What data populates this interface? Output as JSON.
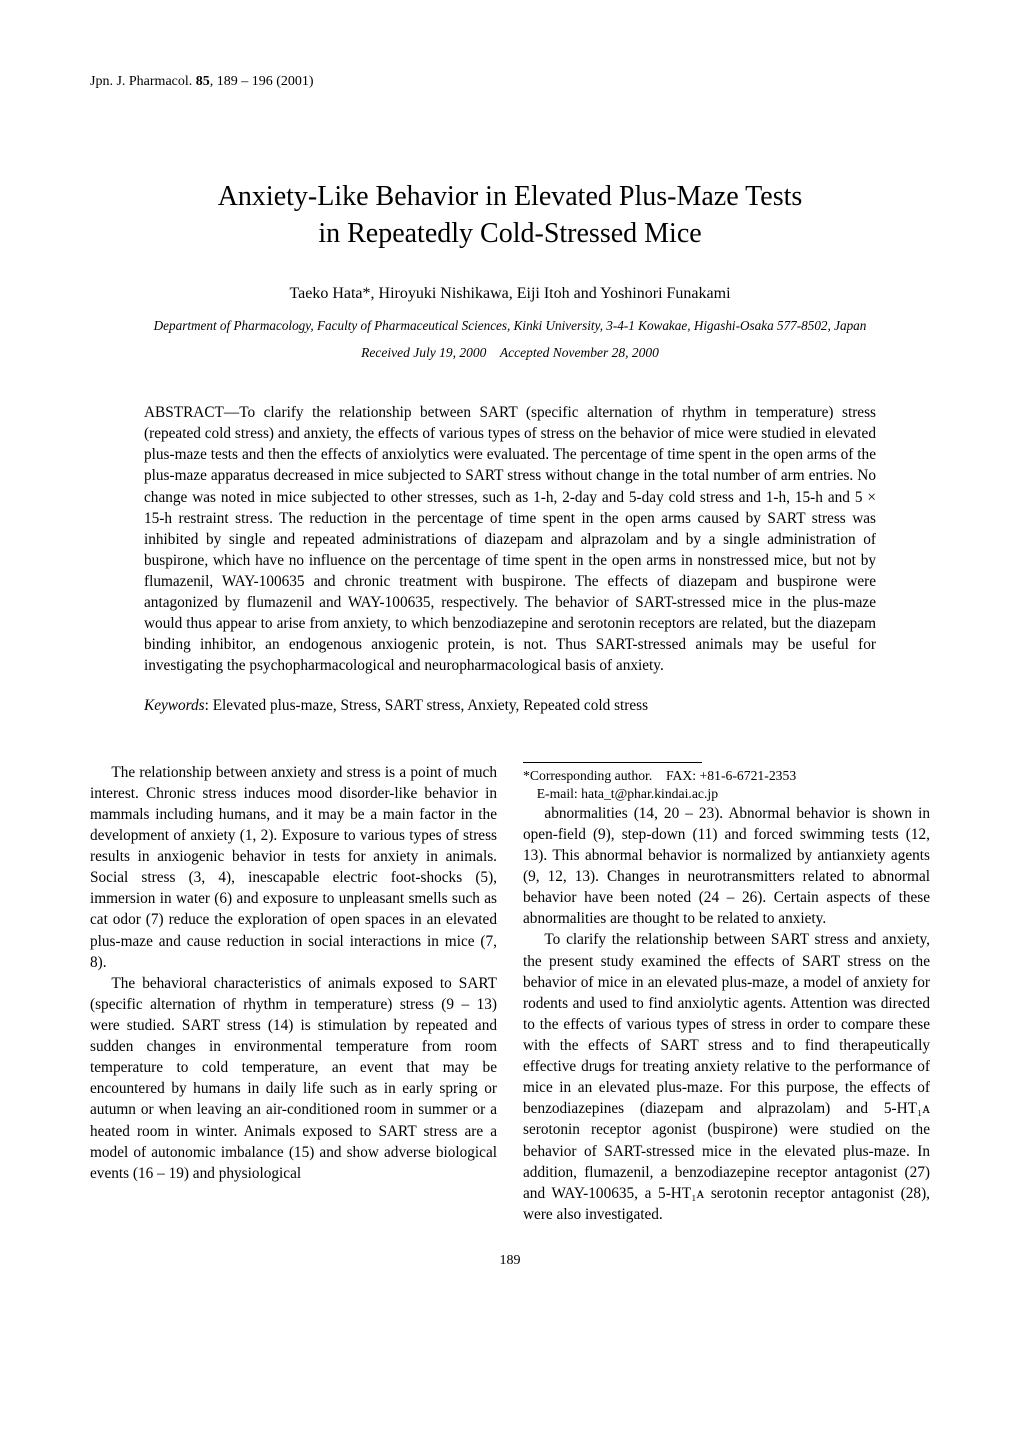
{
  "journal": {
    "name": "Jpn. J. Pharmacol.",
    "volume": "85",
    "pages": "189 – 196",
    "year": "(2001)"
  },
  "title_line1": "Anxiety-Like Behavior in Elevated Plus-Maze Tests",
  "title_line2": "in Repeatedly Cold-Stressed Mice",
  "authors": "Taeko Hata*, Hiroyuki Nishikawa, Eiji Itoh and Yoshinori Funakami",
  "affiliation": "Department of Pharmacology, Faculty of Pharmaceutical Sciences, Kinki University, 3-4-1 Kowakae, Higashi-Osaka 577-8502, Japan",
  "received": "Received July 19, 2000",
  "accepted": "Accepted November 28, 2000",
  "abstract_label": "ABSTRACT—",
  "abstract_body": "To clarify the relationship between SART (specific alternation of rhythm in temperature) stress (repeated cold stress) and anxiety, the effects of various types of stress on the behavior of mice were studied in elevated plus-maze tests and then the effects of anxiolytics were evaluated. The percentage of time spent in the open arms of the plus-maze apparatus decreased in mice subjected to SART stress without change in the total number of arm entries. No change was noted in mice subjected to other stresses, such as 1-h, 2-day and 5-day cold stress and 1-h, 15-h and 5 × 15-h restraint stress. The reduction in the percentage of time spent in the open arms caused by SART stress was inhibited by single and repeated administrations of diazepam and alprazolam and by a single administration of buspirone, which have no influence on the percentage of time spent in the open arms in nonstressed mice, but not by flumazenil, WAY-100635 and chronic treatment with buspirone. The effects of diazepam and buspirone were antagonized by flumazenil and WAY-100635, respectively. The behavior of SART-stressed mice in the plus-maze would thus appear to arise from anxiety, to which benzodiazepine and serotonin receptors are related, but the diazepam binding inhibitor, an endogenous anxiogenic protein, is not. Thus SART-stressed animals may be useful for investigating the psychopharmacological and neuropharmacological basis of anxiety.",
  "keywords_label": "Keywords",
  "keywords_body": ": Elevated plus-maze, Stress, SART stress, Anxiety, Repeated cold stress",
  "body": {
    "p1": "The relationship between anxiety and stress is a point of much interest. Chronic stress induces mood disorder-like behavior in mammals including humans, and it may be a main factor in the development of anxiety (1, 2). Exposure to various types of stress results in anxiogenic behavior in tests for anxiety in animals. Social stress (3, 4), inescapable electric foot-shocks (5), immersion in water (6) and exposure to unpleasant smells such as cat odor (7) reduce the exploration of open spaces in an elevated plus-maze and cause reduction in social interactions in mice (7, 8).",
    "p2": "The behavioral characteristics of animals exposed to SART (specific alternation of rhythm in temperature) stress (9 – 13) were studied. SART stress (14) is stimulation by repeated and sudden changes in environmental temperature from room temperature to cold temperature, an event that may be encountered by humans in daily life such as in early spring or autumn or when leaving an air-conditioned room in summer or a heated room in winter. Animals exposed to SART stress are a model of autonomic imbalance (15) and show adverse biological events (16 – 19) and physiological",
    "p3": "abnormalities (14, 20 – 23). Abnormal behavior is shown in open-field (9), step-down (11) and forced swimming tests (12, 13). This abnormal behavior is normalized by antianxiety agents (9, 12, 13). Changes in neurotransmitters related to abnormal behavior have been noted (24 – 26). Certain aspects of these abnormalities are thought to be related to anxiety.",
    "p4": "To clarify the relationship between SART stress and anxiety, the present study examined the effects of SART stress on the behavior of mice in an elevated plus-maze, a model of anxiety for rodents and used to find anxiolytic agents. Attention was directed to the effects of various types of stress in order to compare these with the effects of SART stress and to find therapeutically effective drugs for treating anxiety relative to the performance of mice in an elevated plus-maze. For this purpose, the effects of benzodiazepines (diazepam and alprazolam) and 5-HT₁ᴀ serotonin receptor agonist (buspirone) were studied on the behavior of SART-stressed mice in the elevated plus-maze. In addition, flumazenil, a benzodiazepine receptor antagonist (27) and WAY-100635, a 5-HT₁ᴀ serotonin receptor antagonist (28), were also investigated."
  },
  "footnote": {
    "line1": "*Corresponding author. FAX: +81-6-6721-2353",
    "line2": " E-mail: hata_t@phar.kindai.ac.jp"
  },
  "page_number": "189"
}
